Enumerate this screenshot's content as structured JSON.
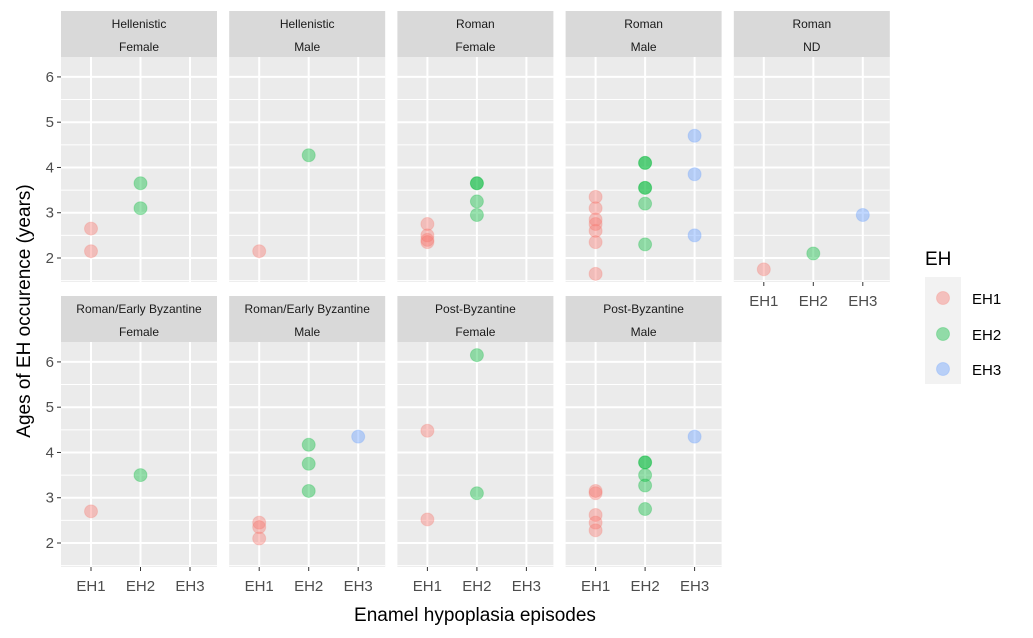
{
  "chart_data": {
    "type": "scatter",
    "xlabel": "Enamel hypoplasia episodes",
    "ylabel": "Ages of EH occurence (years)",
    "categories": [
      "EH1",
      "EH2",
      "EH3"
    ],
    "ylim": [
      1.47,
      6.44
    ],
    "yticks": [
      2,
      3,
      4,
      5,
      6
    ],
    "grid": true,
    "legend": {
      "title": "EH",
      "position": "right",
      "entries": [
        {
          "label": "EH1",
          "color": "#F8766D"
        },
        {
          "label": "EH2",
          "color": "#00BA38"
        },
        {
          "label": "EH3",
          "color": "#619CFF"
        }
      ]
    },
    "panels": [
      {
        "period": "Hellenistic",
        "sex": "Female",
        "row": 0,
        "col": 0,
        "show_x_axis": false,
        "show_y_axis": true,
        "points": {
          "EH1": [
            2.65,
            2.15
          ],
          "EH2": [
            3.65,
            3.1
          ],
          "EH3": []
        }
      },
      {
        "period": "Hellenistic",
        "sex": "Male",
        "row": 0,
        "col": 1,
        "show_x_axis": false,
        "show_y_axis": false,
        "points": {
          "EH1": [
            2.15
          ],
          "EH2": [
            4.27
          ],
          "EH3": []
        }
      },
      {
        "period": "Roman",
        "sex": "Female",
        "row": 0,
        "col": 2,
        "show_x_axis": false,
        "show_y_axis": false,
        "points": {
          "EH1": [
            2.75,
            2.5,
            2.4,
            2.35
          ],
          "EH2": [
            3.65,
            3.65,
            3.25,
            2.95
          ],
          "EH3": []
        }
      },
      {
        "period": "Roman",
        "sex": "Male",
        "row": 0,
        "col": 3,
        "show_x_axis": false,
        "show_y_axis": false,
        "points": {
          "EH1": [
            3.35,
            3.1,
            2.85,
            2.75,
            2.6,
            2.35,
            1.65
          ],
          "EH2": [
            4.1,
            4.1,
            3.55,
            3.55,
            3.2,
            2.3
          ],
          "EH3": [
            4.7,
            3.85,
            2.5
          ]
        }
      },
      {
        "period": "Roman",
        "sex": "ND",
        "row": 0,
        "col": 4,
        "show_x_axis": true,
        "show_y_axis": false,
        "points": {
          "EH1": [
            1.75
          ],
          "EH2": [
            2.1
          ],
          "EH3": [
            2.95
          ]
        }
      },
      {
        "period": "Roman/Early Byzantine",
        "sex": "Female",
        "row": 1,
        "col": 0,
        "show_x_axis": true,
        "show_y_axis": true,
        "points": {
          "EH1": [
            2.7
          ],
          "EH2": [
            3.5
          ],
          "EH3": []
        }
      },
      {
        "period": "Roman/Early Byzantine",
        "sex": "Male",
        "row": 1,
        "col": 1,
        "show_x_axis": true,
        "show_y_axis": false,
        "points": {
          "EH1": [
            2.45,
            2.35,
            2.1
          ],
          "EH2": [
            4.17,
            3.75,
            3.15
          ],
          "EH3": [
            4.35
          ]
        }
      },
      {
        "period": "Post-Byzantine",
        "sex": "Female",
        "row": 1,
        "col": 2,
        "show_x_axis": true,
        "show_y_axis": false,
        "points": {
          "EH1": [
            4.48,
            2.52
          ],
          "EH2": [
            6.15,
            3.1
          ],
          "EH3": []
        }
      },
      {
        "period": "Post-Byzantine",
        "sex": "Male",
        "row": 1,
        "col": 3,
        "show_x_axis": true,
        "show_y_axis": false,
        "points": {
          "EH1": [
            3.15,
            3.1,
            2.62,
            2.45,
            2.28
          ],
          "EH2": [
            3.78,
            3.78,
            3.5,
            3.27,
            2.75
          ],
          "EH3": [
            4.35
          ]
        }
      }
    ]
  },
  "colors": {
    "panel_background": "#EBEBEB",
    "strip_background": "#D9D9D9",
    "grid": "#FFFFFF",
    "tick_text": "#4D4D4D",
    "strip_text": "#1A1A1A"
  }
}
